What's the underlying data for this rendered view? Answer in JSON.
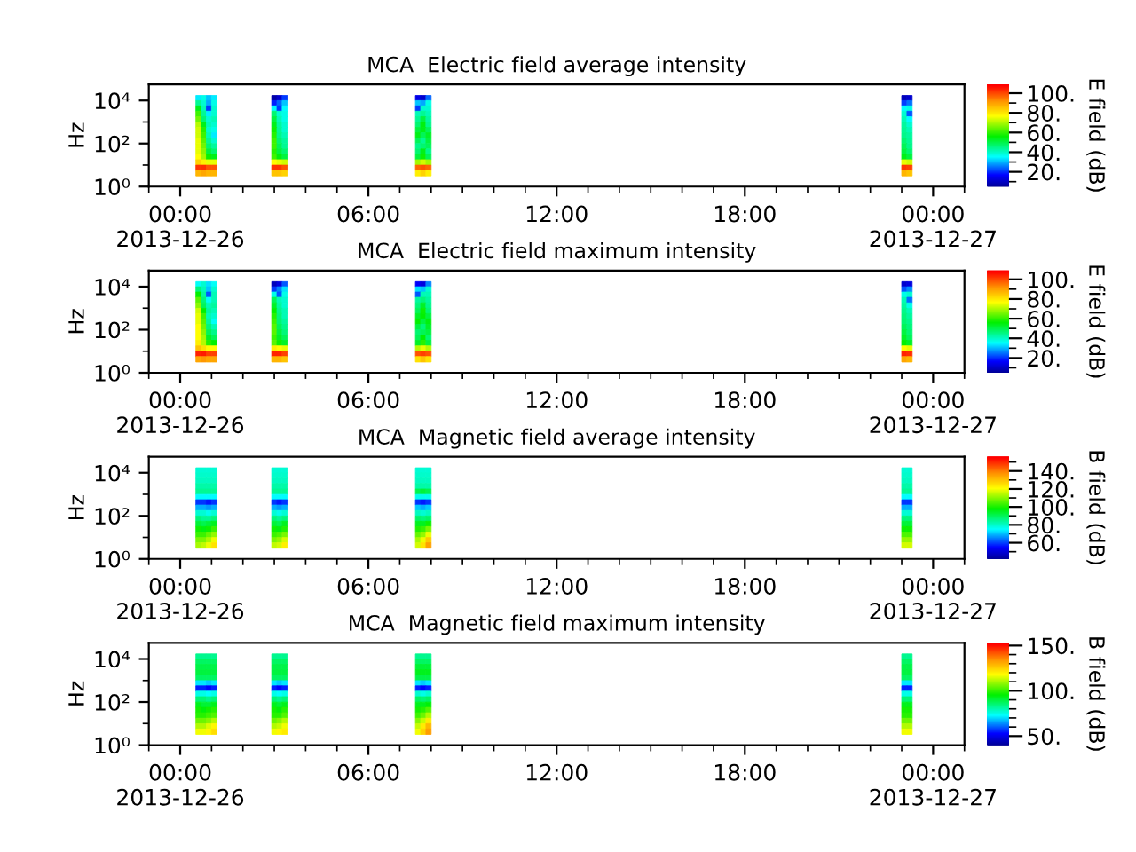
{
  "chart_data": [
    {
      "type": "heatmap",
      "title": "MCA  Electric field average intensity",
      "ylabel": "Hz",
      "clabel": "E field (dB)",
      "x": [
        "2013-12-26T00:25",
        "2013-12-26T00:35",
        "2013-12-26T00:45",
        "2013-12-26T00:55",
        "2013-12-26T01:05",
        "2013-12-26T01:15",
        "2013-12-26T02:50",
        "2013-12-26T03:00",
        "2013-12-26T03:10",
        "2013-12-26T03:20",
        "2013-12-26T03:30",
        "2013-12-26T07:25",
        "2013-12-26T07:35",
        "2013-12-26T07:45",
        "2013-12-26T07:55",
        "2013-12-26T08:05",
        "2013-12-26T22:55",
        "2013-12-26T23:05",
        "2013-12-26T23:15",
        "2013-12-26T23:25"
      ],
      "xlim": [
        "2013-12-25T23:00",
        "2013-12-27T01:00"
      ],
      "xticks": [
        {
          "value": "2013-12-25T23:00",
          "label": null
        },
        {
          "value": "2013-12-26T00:00",
          "label": "00:00\n2013-12-26"
        },
        {
          "value": "2013-12-26T01:00",
          "label": null
        },
        {
          "value": "2013-12-26T02:00",
          "label": null
        },
        {
          "value": "2013-12-26T03:00",
          "label": null
        },
        {
          "value": "2013-12-26T04:00",
          "label": null
        },
        {
          "value": "2013-12-26T05:00",
          "label": null
        },
        {
          "value": "2013-12-26T06:00",
          "label": "06:00"
        },
        {
          "value": "2013-12-26T07:00",
          "label": null
        },
        {
          "value": "2013-12-26T08:00",
          "label": null
        },
        {
          "value": "2013-12-26T09:00",
          "label": null
        },
        {
          "value": "2013-12-26T10:00",
          "label": null
        },
        {
          "value": "2013-12-26T11:00",
          "label": null
        },
        {
          "value": "2013-12-26T12:00",
          "label": "12:00"
        },
        {
          "value": "2013-12-26T13:00",
          "label": null
        },
        {
          "value": "2013-12-26T14:00",
          "label": null
        },
        {
          "value": "2013-12-26T15:00",
          "label": null
        },
        {
          "value": "2013-12-26T16:00",
          "label": null
        },
        {
          "value": "2013-12-26T17:00",
          "label": null
        },
        {
          "value": "2013-12-26T18:00",
          "label": "18:00"
        },
        {
          "value": "2013-12-26T19:00",
          "label": null
        },
        {
          "value": "2013-12-26T20:00",
          "label": null
        },
        {
          "value": "2013-12-26T21:00",
          "label": null
        },
        {
          "value": "2013-12-26T22:00",
          "label": null
        },
        {
          "value": "2013-12-26T23:00",
          "label": null
        },
        {
          "value": "2013-12-27T00:00",
          "label": "00:00\n2013-12-27"
        },
        {
          "value": "2013-12-27T01:00",
          "label": null
        }
      ],
      "log": "y",
      "ylim": [
        1,
        56234
      ],
      "yticks": [
        {
          "value": 1,
          "label": "10⁰"
        },
        {
          "value": 10,
          "label": null
        },
        {
          "value": 100,
          "label": "10²"
        },
        {
          "value": 1000,
          "label": null
        },
        {
          "value": 10000,
          "label": "10⁴"
        }
      ],
      "y": [
        13000,
        7500,
        4200,
        2400,
        1300,
        750,
        420,
        240,
        130,
        75,
        42,
        24,
        13,
        7.5,
        4.2
      ],
      "cells": [
        [
          null,
          35,
          38,
          32,
          35,
          null,
          null,
          8,
          12,
          22,
          null,
          null,
          15,
          12,
          25,
          null,
          null,
          10,
          12,
          null
        ],
        [
          null,
          45,
          40,
          30,
          38,
          null,
          null,
          20,
          25,
          32,
          null,
          null,
          32,
          30,
          38,
          null,
          null,
          22,
          26,
          null
        ],
        [
          null,
          55,
          42,
          22,
          40,
          null,
          null,
          36,
          22,
          36,
          null,
          null,
          22,
          40,
          40,
          null,
          null,
          36,
          38,
          null
        ],
        [
          null,
          62,
          45,
          35,
          40,
          null,
          null,
          48,
          40,
          38,
          null,
          null,
          42,
          45,
          42,
          null,
          null,
          40,
          24,
          null
        ],
        [
          null,
          66,
          48,
          40,
          42,
          null,
          null,
          52,
          42,
          38,
          null,
          null,
          45,
          52,
          44,
          null,
          null,
          42,
          36,
          null
        ],
        [
          null,
          72,
          55,
          42,
          40,
          null,
          null,
          55,
          44,
          40,
          null,
          null,
          48,
          56,
          46,
          null,
          null,
          44,
          40,
          null
        ],
        [
          null,
          74,
          60,
          40,
          38,
          null,
          null,
          58,
          45,
          40,
          null,
          null,
          52,
          55,
          50,
          null,
          null,
          45,
          42,
          null
        ],
        [
          null,
          74,
          62,
          42,
          35,
          null,
          null,
          60,
          46,
          42,
          null,
          null,
          55,
          50,
          54,
          null,
          null,
          46,
          44,
          null
        ],
        [
          null,
          76,
          64,
          45,
          40,
          null,
          null,
          62,
          48,
          44,
          null,
          null,
          50,
          45,
          52,
          null,
          null,
          48,
          45,
          null
        ],
        [
          null,
          76,
          66,
          48,
          44,
          null,
          null,
          62,
          50,
          45,
          null,
          null,
          46,
          48,
          50,
          null,
          null,
          50,
          46,
          null
        ],
        [
          null,
          76,
          68,
          52,
          48,
          null,
          null,
          60,
          52,
          48,
          null,
          null,
          48,
          55,
          46,
          null,
          null,
          52,
          48,
          null
        ],
        [
          null,
          78,
          70,
          58,
          55,
          null,
          null,
          62,
          56,
          52,
          null,
          null,
          52,
          58,
          50,
          null,
          null,
          55,
          52,
          null
        ],
        [
          null,
          84,
          80,
          76,
          76,
          null,
          null,
          78,
          76,
          74,
          null,
          null,
          70,
          74,
          70,
          null,
          null,
          76,
          74,
          null
        ],
        [
          null,
          103,
          104,
          100,
          100,
          null,
          null,
          103,
          103,
          100,
          null,
          null,
          98,
          100,
          98,
          null,
          null,
          103,
          102,
          null
        ],
        [
          null,
          88,
          90,
          88,
          88,
          null,
          null,
          86,
          86,
          84,
          null,
          null,
          80,
          84,
          80,
          null,
          null,
          88,
          86,
          null
        ]
      ],
      "clim": [
        5,
        109
      ],
      "cticks": [
        {
          "value": 10,
          "label": null
        },
        {
          "value": 20,
          "label": "20."
        },
        {
          "value": 30,
          "label": null
        },
        {
          "value": 40,
          "label": "40."
        },
        {
          "value": 50,
          "label": null
        },
        {
          "value": 60,
          "label": "60."
        },
        {
          "value": 70,
          "label": null
        },
        {
          "value": 80,
          "label": "80."
        },
        {
          "value": 90,
          "label": null
        },
        {
          "value": 100,
          "label": "100."
        }
      ]
    },
    {
      "type": "heatmap",
      "title": "MCA  Electric field maximum intensity",
      "ylabel": "Hz",
      "clabel": "E field (dB)",
      "x": [
        "2013-12-26T00:25",
        "2013-12-26T00:35",
        "2013-12-26T00:45",
        "2013-12-26T00:55",
        "2013-12-26T01:05",
        "2013-12-26T01:15",
        "2013-12-26T02:50",
        "2013-12-26T03:00",
        "2013-12-26T03:10",
        "2013-12-26T03:20",
        "2013-12-26T03:30",
        "2013-12-26T07:25",
        "2013-12-26T07:35",
        "2013-12-26T07:45",
        "2013-12-26T07:55",
        "2013-12-26T08:05",
        "2013-12-26T22:55",
        "2013-12-26T23:05",
        "2013-12-26T23:15",
        "2013-12-26T23:25"
      ],
      "xlim": [
        "2013-12-25T23:00",
        "2013-12-27T01:00"
      ],
      "xticks": [
        {
          "value": "2013-12-25T23:00",
          "label": null
        },
        {
          "value": "2013-12-26T00:00",
          "label": "00:00\n2013-12-26"
        },
        {
          "value": "2013-12-26T01:00",
          "label": null
        },
        {
          "value": "2013-12-26T02:00",
          "label": null
        },
        {
          "value": "2013-12-26T03:00",
          "label": null
        },
        {
          "value": "2013-12-26T04:00",
          "label": null
        },
        {
          "value": "2013-12-26T05:00",
          "label": null
        },
        {
          "value": "2013-12-26T06:00",
          "label": "06:00"
        },
        {
          "value": "2013-12-26T07:00",
          "label": null
        },
        {
          "value": "2013-12-26T08:00",
          "label": null
        },
        {
          "value": "2013-12-26T09:00",
          "label": null
        },
        {
          "value": "2013-12-26T10:00",
          "label": null
        },
        {
          "value": "2013-12-26T11:00",
          "label": null
        },
        {
          "value": "2013-12-26T12:00",
          "label": "12:00"
        },
        {
          "value": "2013-12-26T13:00",
          "label": null
        },
        {
          "value": "2013-12-26T14:00",
          "label": null
        },
        {
          "value": "2013-12-26T15:00",
          "label": null
        },
        {
          "value": "2013-12-26T16:00",
          "label": null
        },
        {
          "value": "2013-12-26T17:00",
          "label": null
        },
        {
          "value": "2013-12-26T18:00",
          "label": "18:00"
        },
        {
          "value": "2013-12-26T19:00",
          "label": null
        },
        {
          "value": "2013-12-26T20:00",
          "label": null
        },
        {
          "value": "2013-12-26T21:00",
          "label": null
        },
        {
          "value": "2013-12-26T22:00",
          "label": null
        },
        {
          "value": "2013-12-26T23:00",
          "label": null
        },
        {
          "value": "2013-12-27T00:00",
          "label": "00:00\n2013-12-27"
        },
        {
          "value": "2013-12-27T01:00",
          "label": null
        }
      ],
      "log": "y",
      "ylim": [
        1,
        56234
      ],
      "yticks": [
        {
          "value": 1,
          "label": "10⁰"
        },
        {
          "value": 10,
          "label": null
        },
        {
          "value": 100,
          "label": "10²"
        },
        {
          "value": 1000,
          "label": null
        },
        {
          "value": 10000,
          "label": "10⁴"
        }
      ],
      "y": [
        13000,
        7500,
        4200,
        2400,
        1300,
        750,
        420,
        240,
        130,
        75,
        42,
        24,
        13,
        7.5,
        4.2
      ],
      "cells": [
        [
          null,
          37,
          40,
          34,
          37,
          null,
          null,
          10,
          14,
          24,
          null,
          null,
          17,
          14,
          27,
          null,
          null,
          12,
          14,
          null
        ],
        [
          null,
          47,
          42,
          32,
          40,
          null,
          null,
          22,
          27,
          34,
          null,
          null,
          34,
          32,
          40,
          null,
          null,
          24,
          28,
          null
        ],
        [
          null,
          57,
          44,
          24,
          42,
          null,
          null,
          38,
          24,
          38,
          null,
          null,
          24,
          42,
          42,
          null,
          null,
          38,
          40,
          null
        ],
        [
          null,
          64,
          47,
          37,
          42,
          null,
          null,
          50,
          42,
          40,
          null,
          null,
          44,
          47,
          44,
          null,
          null,
          42,
          26,
          null
        ],
        [
          null,
          68,
          50,
          42,
          44,
          null,
          null,
          54,
          44,
          40,
          null,
          null,
          47,
          54,
          46,
          null,
          null,
          44,
          38,
          null
        ],
        [
          null,
          74,
          57,
          44,
          42,
          null,
          null,
          57,
          46,
          42,
          null,
          null,
          50,
          58,
          48,
          null,
          null,
          46,
          42,
          null
        ],
        [
          null,
          76,
          62,
          42,
          40,
          null,
          null,
          60,
          47,
          42,
          null,
          null,
          54,
          57,
          52,
          null,
          null,
          47,
          44,
          null
        ],
        [
          null,
          76,
          64,
          44,
          37,
          null,
          null,
          62,
          48,
          44,
          null,
          null,
          57,
          52,
          56,
          null,
          null,
          48,
          46,
          null
        ],
        [
          null,
          78,
          66,
          47,
          42,
          null,
          null,
          64,
          50,
          46,
          null,
          null,
          52,
          47,
          54,
          null,
          null,
          50,
          47,
          null
        ],
        [
          null,
          78,
          68,
          50,
          46,
          null,
          null,
          64,
          52,
          47,
          null,
          null,
          48,
          50,
          52,
          null,
          null,
          52,
          48,
          null
        ],
        [
          null,
          78,
          70,
          54,
          50,
          null,
          null,
          62,
          54,
          50,
          null,
          null,
          50,
          57,
          48,
          null,
          null,
          54,
          50,
          null
        ],
        [
          null,
          80,
          72,
          60,
          57,
          null,
          null,
          64,
          58,
          54,
          null,
          null,
          54,
          60,
          52,
          null,
          null,
          57,
          54,
          null
        ],
        [
          null,
          86,
          82,
          78,
          78,
          null,
          null,
          80,
          78,
          76,
          null,
          null,
          72,
          76,
          72,
          null,
          null,
          78,
          76,
          null
        ],
        [
          null,
          105,
          106,
          102,
          102,
          null,
          null,
          105,
          105,
          102,
          null,
          null,
          100,
          102,
          100,
          null,
          null,
          105,
          104,
          null
        ],
        [
          null,
          90,
          92,
          90,
          90,
          null,
          null,
          88,
          88,
          86,
          null,
          null,
          82,
          86,
          82,
          null,
          null,
          90,
          88,
          null
        ]
      ],
      "clim": [
        5,
        109
      ],
      "cticks": [
        {
          "value": 10,
          "label": null
        },
        {
          "value": 20,
          "label": "20."
        },
        {
          "value": 30,
          "label": null
        },
        {
          "value": 40,
          "label": "40."
        },
        {
          "value": 50,
          "label": null
        },
        {
          "value": 60,
          "label": "60."
        },
        {
          "value": 70,
          "label": null
        },
        {
          "value": 80,
          "label": "80."
        },
        {
          "value": 90,
          "label": null
        },
        {
          "value": 100,
          "label": "100."
        }
      ]
    },
    {
      "type": "heatmap",
      "title": "MCA  Magnetic field average intensity",
      "ylabel": "Hz",
      "clabel": "B field (dB)",
      "x": [
        "2013-12-26T00:25",
        "2013-12-26T00:35",
        "2013-12-26T00:45",
        "2013-12-26T00:55",
        "2013-12-26T01:05",
        "2013-12-26T01:15",
        "2013-12-26T02:50",
        "2013-12-26T03:00",
        "2013-12-26T03:10",
        "2013-12-26T03:20",
        "2013-12-26T03:30",
        "2013-12-26T07:25",
        "2013-12-26T07:35",
        "2013-12-26T07:45",
        "2013-12-26T07:55",
        "2013-12-26T08:05",
        "2013-12-26T22:55",
        "2013-12-26T23:05",
        "2013-12-26T23:15",
        "2013-12-26T23:25"
      ],
      "xlim": [
        "2013-12-25T23:00",
        "2013-12-27T01:00"
      ],
      "xticks": [
        {
          "value": "2013-12-25T23:00",
          "label": null
        },
        {
          "value": "2013-12-26T00:00",
          "label": "00:00\n2013-12-26"
        },
        {
          "value": "2013-12-26T01:00",
          "label": null
        },
        {
          "value": "2013-12-26T02:00",
          "label": null
        },
        {
          "value": "2013-12-26T03:00",
          "label": null
        },
        {
          "value": "2013-12-26T04:00",
          "label": null
        },
        {
          "value": "2013-12-26T05:00",
          "label": null
        },
        {
          "value": "2013-12-26T06:00",
          "label": "06:00"
        },
        {
          "value": "2013-12-26T07:00",
          "label": null
        },
        {
          "value": "2013-12-26T08:00",
          "label": null
        },
        {
          "value": "2013-12-26T09:00",
          "label": null
        },
        {
          "value": "2013-12-26T10:00",
          "label": null
        },
        {
          "value": "2013-12-26T11:00",
          "label": null
        },
        {
          "value": "2013-12-26T12:00",
          "label": "12:00"
        },
        {
          "value": "2013-12-26T13:00",
          "label": null
        },
        {
          "value": "2013-12-26T14:00",
          "label": null
        },
        {
          "value": "2013-12-26T15:00",
          "label": null
        },
        {
          "value": "2013-12-26T16:00",
          "label": null
        },
        {
          "value": "2013-12-26T17:00",
          "label": null
        },
        {
          "value": "2013-12-26T18:00",
          "label": "18:00"
        },
        {
          "value": "2013-12-26T19:00",
          "label": null
        },
        {
          "value": "2013-12-26T20:00",
          "label": null
        },
        {
          "value": "2013-12-26T21:00",
          "label": null
        },
        {
          "value": "2013-12-26T22:00",
          "label": null
        },
        {
          "value": "2013-12-26T23:00",
          "label": null
        },
        {
          "value": "2013-12-27T00:00",
          "label": "00:00\n2013-12-27"
        },
        {
          "value": "2013-12-27T01:00",
          "label": null
        }
      ],
      "log": "y",
      "ylim": [
        1,
        56234
      ],
      "yticks": [
        {
          "value": 1,
          "label": "10⁰"
        },
        {
          "value": 10,
          "label": null
        },
        {
          "value": 100,
          "label": "10²"
        },
        {
          "value": 1000,
          "label": null
        },
        {
          "value": 10000,
          "label": "10⁴"
        }
      ],
      "y": [
        13000,
        7500,
        4200,
        2400,
        1300,
        750,
        420,
        240,
        130,
        75,
        42,
        24,
        13,
        7.5,
        4.2
      ],
      "cells": [
        [
          null,
          80,
          80,
          80,
          80,
          null,
          null,
          80,
          80,
          80,
          null,
          null,
          80,
          80,
          80,
          null,
          null,
          80,
          80,
          null
        ],
        [
          null,
          81,
          81,
          81,
          81,
          null,
          null,
          81,
          81,
          81,
          null,
          null,
          81,
          81,
          81,
          null,
          null,
          81,
          81,
          null
        ],
        [
          null,
          82,
          82,
          82,
          82,
          null,
          null,
          82,
          82,
          82,
          null,
          null,
          82,
          82,
          82,
          null,
          null,
          82,
          82,
          null
        ],
        [
          null,
          84,
          84,
          84,
          84,
          null,
          null,
          84,
          84,
          84,
          null,
          null,
          84,
          84,
          84,
          null,
          null,
          84,
          84,
          null
        ],
        [
          null,
          86,
          86,
          86,
          86,
          null,
          null,
          86,
          86,
          86,
          null,
          null,
          92,
          94,
          92,
          null,
          null,
          86,
          86,
          null
        ],
        [
          null,
          76,
          76,
          76,
          76,
          null,
          null,
          76,
          76,
          76,
          null,
          null,
          78,
          78,
          78,
          null,
          null,
          76,
          76,
          null
        ],
        [
          null,
          60,
          60,
          58,
          60,
          null,
          null,
          60,
          58,
          60,
          null,
          null,
          60,
          58,
          60,
          null,
          null,
          60,
          60,
          null
        ],
        [
          null,
          70,
          70,
          68,
          70,
          null,
          null,
          70,
          68,
          70,
          null,
          null,
          72,
          70,
          72,
          null,
          null,
          70,
          70,
          null
        ],
        [
          null,
          80,
          80,
          78,
          80,
          null,
          null,
          80,
          78,
          80,
          null,
          null,
          82,
          80,
          82,
          null,
          null,
          80,
          80,
          null
        ],
        [
          null,
          88,
          86,
          86,
          88,
          null,
          null,
          88,
          86,
          88,
          null,
          null,
          90,
          88,
          90,
          null,
          null,
          88,
          88,
          null
        ],
        [
          null,
          94,
          92,
          94,
          96,
          null,
          null,
          94,
          92,
          96,
          null,
          null,
          96,
          96,
          100,
          null,
          null,
          94,
          94,
          null
        ],
        [
          null,
          100,
          98,
          100,
          104,
          null,
          null,
          100,
          98,
          102,
          null,
          null,
          102,
          104,
          110,
          null,
          null,
          100,
          100,
          null
        ],
        [
          null,
          104,
          104,
          108,
          112,
          null,
          null,
          104,
          106,
          110,
          null,
          null,
          108,
          112,
          120,
          null,
          null,
          106,
          106,
          null
        ],
        [
          null,
          110,
          110,
          114,
          120,
          null,
          null,
          110,
          112,
          118,
          null,
          null,
          114,
          120,
          130,
          null,
          null,
          112,
          112,
          null
        ],
        [
          null,
          114,
          116,
          120,
          126,
          null,
          null,
          116,
          118,
          124,
          null,
          null,
          118,
          126,
          136,
          null,
          null,
          118,
          118,
          null
        ]
      ],
      "clim": [
        42,
        156
      ],
      "cticks": [
        {
          "value": 50,
          "label": null
        },
        {
          "value": 60,
          "label": "60."
        },
        {
          "value": 70,
          "label": null
        },
        {
          "value": 80,
          "label": "80."
        },
        {
          "value": 90,
          "label": null
        },
        {
          "value": 100,
          "label": "100."
        },
        {
          "value": 110,
          "label": null
        },
        {
          "value": 120,
          "label": "120."
        },
        {
          "value": 130,
          "label": null
        },
        {
          "value": 140,
          "label": "140."
        },
        {
          "value": 150,
          "label": null
        }
      ]
    },
    {
      "type": "heatmap",
      "title": "MCA  Magnetic field maximum intensity",
      "ylabel": "Hz",
      "clabel": "B field (dB)",
      "x": [
        "2013-12-26T00:25",
        "2013-12-26T00:35",
        "2013-12-26T00:45",
        "2013-12-26T00:55",
        "2013-12-26T01:05",
        "2013-12-26T01:15",
        "2013-12-26T02:50",
        "2013-12-26T03:00",
        "2013-12-26T03:10",
        "2013-12-26T03:20",
        "2013-12-26T03:30",
        "2013-12-26T07:25",
        "2013-12-26T07:35",
        "2013-12-26T07:45",
        "2013-12-26T07:55",
        "2013-12-26T08:05",
        "2013-12-26T22:55",
        "2013-12-26T23:05",
        "2013-12-26T23:15",
        "2013-12-26T23:25"
      ],
      "xlim": [
        "2013-12-25T23:00",
        "2013-12-27T01:00"
      ],
      "xticks": [
        {
          "value": "2013-12-25T23:00",
          "label": null
        },
        {
          "value": "2013-12-26T00:00",
          "label": "00:00\n2013-12-26"
        },
        {
          "value": "2013-12-26T01:00",
          "label": null
        },
        {
          "value": "2013-12-26T02:00",
          "label": null
        },
        {
          "value": "2013-12-26T03:00",
          "label": null
        },
        {
          "value": "2013-12-26T04:00",
          "label": null
        },
        {
          "value": "2013-12-26T05:00",
          "label": null
        },
        {
          "value": "2013-12-26T06:00",
          "label": "06:00"
        },
        {
          "value": "2013-12-26T07:00",
          "label": null
        },
        {
          "value": "2013-12-26T08:00",
          "label": null
        },
        {
          "value": "2013-12-26T09:00",
          "label": null
        },
        {
          "value": "2013-12-26T10:00",
          "label": null
        },
        {
          "value": "2013-12-26T11:00",
          "label": null
        },
        {
          "value": "2013-12-26T12:00",
          "label": "12:00"
        },
        {
          "value": "2013-12-26T13:00",
          "label": null
        },
        {
          "value": "2013-12-26T14:00",
          "label": null
        },
        {
          "value": "2013-12-26T15:00",
          "label": null
        },
        {
          "value": "2013-12-26T16:00",
          "label": null
        },
        {
          "value": "2013-12-26T17:00",
          "label": null
        },
        {
          "value": "2013-12-26T18:00",
          "label": "18:00"
        },
        {
          "value": "2013-12-26T19:00",
          "label": null
        },
        {
          "value": "2013-12-26T20:00",
          "label": null
        },
        {
          "value": "2013-12-26T21:00",
          "label": null
        },
        {
          "value": "2013-12-26T22:00",
          "label": null
        },
        {
          "value": "2013-12-26T23:00",
          "label": null
        },
        {
          "value": "2013-12-27T00:00",
          "label": "00:00\n2013-12-27"
        },
        {
          "value": "2013-12-27T01:00",
          "label": null
        }
      ],
      "log": "y",
      "ylim": [
        1,
        56234
      ],
      "yticks": [
        {
          "value": 1,
          "label": "10⁰"
        },
        {
          "value": 10,
          "label": null
        },
        {
          "value": 100,
          "label": "10²"
        },
        {
          "value": 1000,
          "label": null
        },
        {
          "value": 10000,
          "label": "10⁴"
        }
      ],
      "y": [
        13000,
        7500,
        4200,
        2400,
        1300,
        750,
        420,
        240,
        130,
        75,
        42,
        24,
        13,
        7.5,
        4.2
      ],
      "cells": [
        [
          null,
          84,
          84,
          84,
          84,
          null,
          null,
          84,
          84,
          84,
          null,
          null,
          84,
          84,
          84,
          null,
          null,
          84,
          84,
          null
        ],
        [
          null,
          88,
          88,
          88,
          88,
          null,
          null,
          88,
          88,
          88,
          null,
          null,
          88,
          88,
          88,
          null,
          null,
          88,
          88,
          null
        ],
        [
          null,
          90,
          90,
          90,
          90,
          null,
          null,
          90,
          90,
          90,
          null,
          null,
          92,
          92,
          92,
          null,
          null,
          90,
          90,
          null
        ],
        [
          null,
          91,
          91,
          91,
          91,
          null,
          null,
          91,
          91,
          91,
          null,
          null,
          94,
          94,
          94,
          null,
          null,
          91,
          91,
          null
        ],
        [
          null,
          88,
          88,
          88,
          88,
          null,
          null,
          88,
          88,
          88,
          null,
          null,
          90,
          90,
          90,
          null,
          null,
          88,
          88,
          null
        ],
        [
          null,
          72,
          72,
          70,
          72,
          null,
          null,
          72,
          70,
          72,
          null,
          null,
          72,
          70,
          72,
          null,
          null,
          72,
          72,
          null
        ],
        [
          null,
          56,
          56,
          54,
          56,
          null,
          null,
          56,
          54,
          56,
          null,
          null,
          56,
          54,
          56,
          null,
          null,
          56,
          56,
          null
        ],
        [
          null,
          76,
          76,
          74,
          76,
          null,
          null,
          76,
          74,
          76,
          null,
          null,
          78,
          76,
          78,
          null,
          null,
          76,
          76,
          null
        ],
        [
          null,
          86,
          86,
          84,
          86,
          null,
          null,
          86,
          84,
          86,
          null,
          null,
          88,
          86,
          88,
          null,
          null,
          86,
          86,
          null
        ],
        [
          null,
          94,
          92,
          92,
          94,
          null,
          null,
          94,
          92,
          94,
          null,
          null,
          94,
          94,
          96,
          null,
          null,
          94,
          94,
          null
        ],
        [
          null,
          98,
          96,
          98,
          100,
          null,
          null,
          98,
          96,
          100,
          null,
          null,
          98,
          100,
          104,
          null,
          null,
          98,
          98,
          null
        ],
        [
          null,
          100,
          100,
          102,
          104,
          null,
          null,
          100,
          100,
          104,
          null,
          null,
          102,
          106,
          112,
          null,
          null,
          100,
          100,
          null
        ],
        [
          null,
          106,
          106,
          108,
          112,
          null,
          null,
          106,
          108,
          112,
          null,
          null,
          108,
          114,
          122,
          null,
          null,
          106,
          106,
          null
        ],
        [
          null,
          112,
          112,
          116,
          120,
          null,
          null,
          112,
          114,
          118,
          null,
          null,
          114,
          122,
          130,
          null,
          null,
          112,
          112,
          null
        ],
        [
          null,
          118,
          118,
          120,
          124,
          null,
          null,
          118,
          120,
          122,
          null,
          null,
          118,
          126,
          134,
          null,
          null,
          118,
          118,
          null
        ]
      ],
      "clim": [
        40,
        153
      ],
      "cticks": [
        {
          "value": 50,
          "label": "50."
        },
        {
          "value": 60,
          "label": null
        },
        {
          "value": 70,
          "label": null
        },
        {
          "value": 80,
          "label": null
        },
        {
          "value": 90,
          "label": null
        },
        {
          "value": 100,
          "label": "100."
        },
        {
          "value": 110,
          "label": null
        },
        {
          "value": 120,
          "label": null
        },
        {
          "value": 130,
          "label": null
        },
        {
          "value": 140,
          "label": null
        },
        {
          "value": 150,
          "label": "150."
        }
      ]
    }
  ]
}
